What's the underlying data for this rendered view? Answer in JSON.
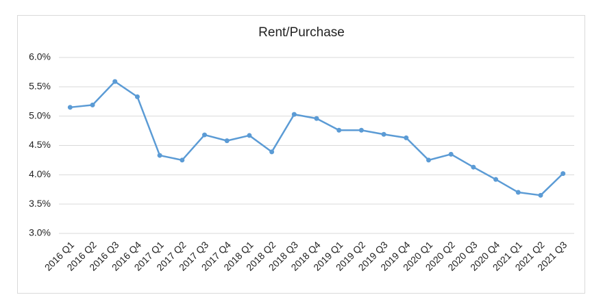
{
  "chart_data": {
    "type": "line",
    "title": "Rent/Purchase",
    "categories": [
      "2016 Q1",
      "2016 Q2",
      "2016 Q3",
      "2016 Q4",
      "2017 Q1",
      "2017 Q2",
      "2017 Q3",
      "2017 Q4",
      "2018 Q1",
      "2018 Q2",
      "2018 Q3",
      "2018 Q4",
      "2019 Q1",
      "2019 Q2",
      "2019 Q3",
      "2019 Q4",
      "2020 Q1",
      "2020 Q2",
      "2020 Q3",
      "2020 Q4",
      "2021 Q1",
      "2021 Q2",
      "2021 Q3"
    ],
    "values": [
      5.15,
      5.19,
      5.59,
      5.33,
      4.33,
      4.25,
      4.68,
      4.58,
      4.67,
      4.39,
      5.03,
      4.96,
      4.76,
      4.76,
      4.69,
      4.63,
      4.25,
      4.35,
      4.13,
      3.92,
      3.7,
      3.65,
      4.02
    ],
    "color": "#5b9bd5",
    "ylim": [
      3,
      6
    ],
    "yticks": [
      {
        "value": 3,
        "label": "3.0%"
      },
      {
        "value": 3.5,
        "label": "3.5%"
      },
      {
        "value": 4,
        "label": "4.0%"
      },
      {
        "value": 4.5,
        "label": "4.5%"
      },
      {
        "value": 5,
        "label": "5.0%"
      },
      {
        "value": 5.5,
        "label": "5.5%"
      },
      {
        "value": 6,
        "label": "6.0%"
      }
    ],
    "grid": true
  }
}
